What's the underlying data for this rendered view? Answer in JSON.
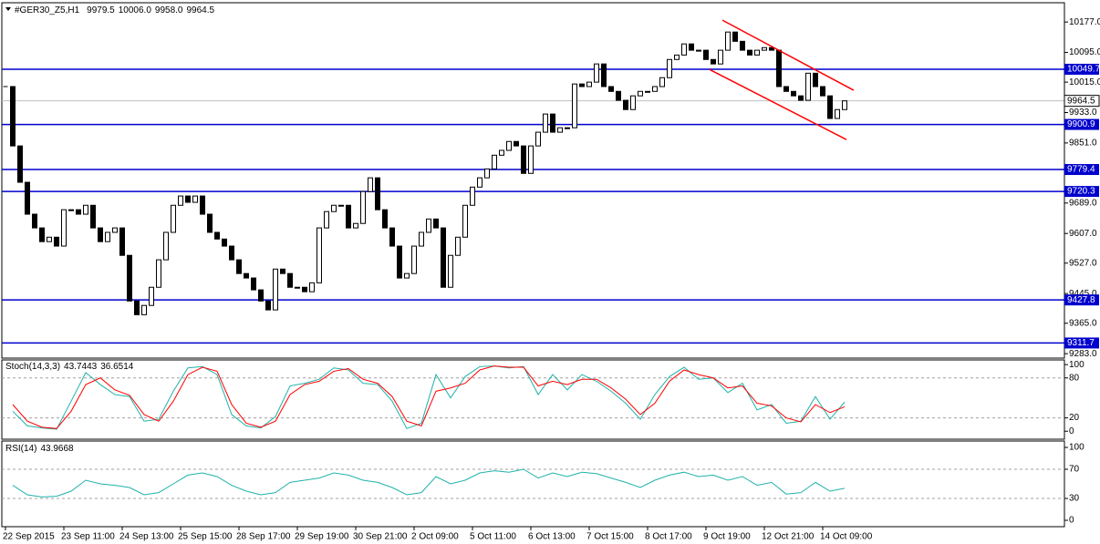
{
  "chart_data": [
    {
      "type": "candlestick",
      "title": "#GER30_Z5,H1",
      "ohlc_labels": [
        "9979.5",
        "10006.0",
        "9958.0",
        "9964.5"
      ],
      "categories": [
        "22 Sep 2015",
        null,
        null,
        null,
        null,
        null,
        null,
        null,
        "23 Sep 11:00",
        null,
        null,
        null,
        null,
        null,
        null,
        null,
        "24 Sep 13:00",
        null,
        null,
        null,
        null,
        null,
        null,
        null,
        "25 Sep 15:00",
        null,
        null,
        null,
        null,
        null,
        null,
        null,
        "28 Sep 17:00",
        null,
        null,
        null,
        null,
        null,
        null,
        null,
        "29 Sep 19:00",
        null,
        null,
        null,
        null,
        null,
        null,
        null,
        "30 Sep 21:00",
        null,
        null,
        null,
        null,
        null,
        null,
        null,
        "2 Oct 09:00",
        null,
        null,
        null,
        null,
        null,
        null,
        null,
        "5 Oct 11:00",
        null,
        null,
        null,
        null,
        null,
        null,
        null,
        "6 Oct 13:00",
        null,
        null,
        null,
        null,
        null,
        null,
        null,
        "7 Oct 15:00",
        null,
        null,
        null,
        null,
        null,
        null,
        null,
        "8 Oct 17:00",
        null,
        null,
        null,
        null,
        null,
        null,
        null,
        "9 Oct 19:00",
        null,
        null,
        null,
        null,
        null,
        null,
        null,
        "12 Oct 21:00",
        null,
        null,
        null,
        null,
        null,
        null,
        null,
        "14 Oct 09:00",
        null,
        null,
        null
      ],
      "values": [
        10003,
        9843,
        9745,
        9659,
        9622,
        9585,
        9597,
        9573,
        9671,
        9671,
        9659,
        9683,
        9622,
        9585,
        9610,
        9622,
        9548,
        9425,
        9388,
        9413,
        9462,
        9536,
        9610,
        9683,
        9708,
        9691,
        9708,
        9659,
        9610,
        9592,
        9573,
        9536,
        9499,
        9487,
        9455,
        9425,
        9401,
        9511,
        9499,
        9462,
        9462,
        9450,
        9474,
        9622,
        9666,
        9683,
        9683,
        9622,
        9634,
        9720,
        9757,
        9671,
        9622,
        9573,
        9487,
        9499,
        9573,
        9610,
        9646,
        9622,
        9462,
        9548,
        9597,
        9683,
        9732,
        9757,
        9781,
        9818,
        9831,
        9855,
        9843,
        9769,
        9843,
        9880,
        9929,
        9880,
        9892,
        9892,
        10010,
        10003,
        10015,
        10064,
        10003,
        9990,
        9966,
        9941,
        9978,
        9990,
        9990,
        10003,
        10027,
        10076,
        10088,
        10118,
        10101,
        10101,
        10076,
        10064,
        10101,
        10150,
        10125,
        10101,
        10088,
        10101,
        10108,
        10101,
        10003,
        9990,
        9978,
        9966,
        10039,
        10003,
        9978,
        9917,
        9941,
        9964.5
      ],
      "color_up": "#ffffff",
      "color_down": "#000000",
      "ylim": [
        9271,
        10229
      ],
      "yticks": [
        {
          "value": 9283,
          "label": "9283.0"
        },
        {
          "value": 9365,
          "label": "9365.0"
        },
        {
          "value": 9445,
          "label": "9445.0"
        },
        {
          "value": 9527,
          "label": "9527.0"
        },
        {
          "value": 9607,
          "label": "9607.0"
        },
        {
          "value": 9689,
          "label": "9689.0"
        },
        {
          "value": 9851,
          "label": "9851.0"
        },
        {
          "value": 9933,
          "label": "9933.0"
        },
        {
          "value": 10015,
          "label": "10015.0"
        },
        {
          "value": 10095,
          "label": "10095.0"
        },
        {
          "value": 10177,
          "label": "10177.0"
        }
      ],
      "levels": [
        10049.7,
        9900.9,
        9779.4,
        9720.3,
        9427.8,
        9311.7
      ],
      "level_color": "#0000cd",
      "channel": [
        [
          10182,
          9993
        ],
        [
          10049,
          9860
        ]
      ],
      "channel_color": "#ff0000"
    },
    {
      "type": "line",
      "title": "Stoch(14,3,3)",
      "series": [
        {
          "color": "#20b2aa",
          "values": [
            30,
            8,
            5,
            3,
            45,
            88,
            70,
            55,
            52,
            15,
            18,
            60,
            95,
            97,
            85,
            25,
            8,
            5,
            22,
            68,
            72,
            78,
            95,
            92,
            72,
            70,
            45,
            4,
            12,
            85,
            50,
            82,
            97,
            98,
            95,
            97,
            55,
            85,
            62,
            85,
            75,
            60,
            42,
            18,
            55,
            82,
            96,
            78,
            80,
            58,
            72,
            32,
            40,
            12,
            15,
            52,
            18,
            43.7443
          ]
        },
        {
          "color": "#ff0000",
          "values": [
            40,
            15,
            6,
            4,
            30,
            70,
            80,
            62,
            54,
            25,
            15,
            45,
            85,
            96,
            90,
            40,
            12,
            6,
            15,
            55,
            70,
            75,
            90,
            94,
            78,
            72,
            52,
            15,
            8,
            60,
            65,
            72,
            92,
            98,
            96,
            96,
            68,
            75,
            70,
            78,
            78,
            65,
            48,
            25,
            42,
            75,
            92,
            85,
            80,
            65,
            68,
            42,
            38,
            20,
            14,
            40,
            28,
            36.6514
          ]
        }
      ],
      "ylim": [
        -12,
        107
      ],
      "yticks": [
        0,
        20,
        80,
        100
      ],
      "levels": [
        20,
        80
      ]
    },
    {
      "type": "line",
      "title": "RSI(14)",
      "series": [
        {
          "color": "#20b2aa",
          "values": [
            48,
            35,
            32,
            33,
            40,
            55,
            50,
            48,
            45,
            35,
            38,
            50,
            62,
            65,
            60,
            48,
            40,
            35,
            38,
            52,
            55,
            58,
            65,
            62,
            55,
            52,
            45,
            35,
            38,
            60,
            50,
            55,
            65,
            68,
            66,
            70,
            58,
            65,
            60,
            66,
            64,
            58,
            52,
            45,
            55,
            62,
            66,
            60,
            62,
            55,
            60,
            48,
            52,
            36,
            38,
            52,
            40,
            43.9668
          ]
        }
      ],
      "ylim": [
        -8.75,
        108.75
      ],
      "yticks": [
        0,
        30,
        70,
        100
      ],
      "levels": [
        30,
        70
      ]
    }
  ]
}
